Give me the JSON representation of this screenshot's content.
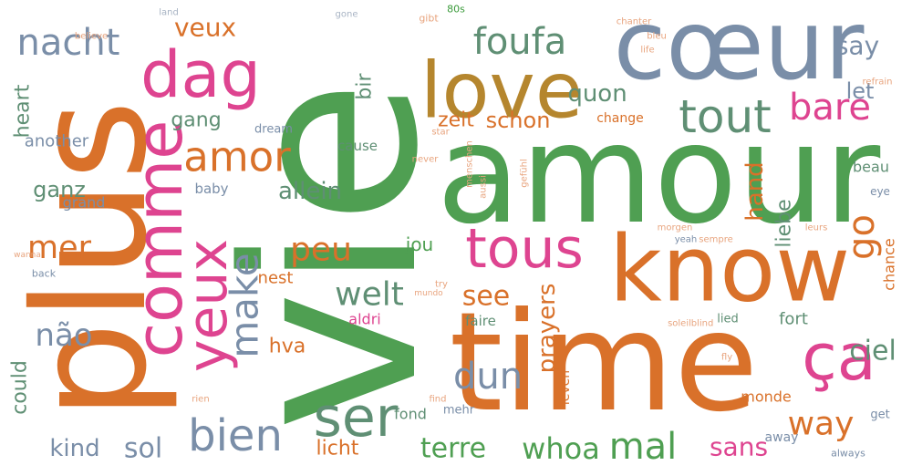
{
  "title": "80s",
  "words": [
    "vie",
    "amour",
    "time",
    "plus",
    "cœur",
    "love",
    "know",
    "comme",
    "yeux",
    "dag",
    "amor",
    "tous",
    "ser",
    "ça",
    "tout",
    "bare",
    "nacht",
    "mer",
    "bien",
    "welt",
    "peu",
    "make",
    "dun",
    "mal",
    "whoa",
    "terre",
    "sol",
    "kind",
    "não",
    "foufa",
    "quon",
    "schon",
    "zeit",
    "gang",
    "veux",
    "say",
    "let",
    "go",
    "way",
    "sans",
    "see",
    "prayers",
    "ciel",
    "hand",
    "liebe",
    "allein",
    "ganz",
    "grand",
    "another",
    "heart",
    "hva",
    "nest",
    "jou",
    "bir",
    "could",
    "licht",
    "fort",
    "beau",
    "chance",
    "faire",
    "fond",
    "monde",
    "away",
    "baby",
    "cause",
    "change",
    "dream",
    "lied",
    "mehr",
    "leven",
    "aldri",
    "get",
    "eye",
    "always",
    "back",
    "land",
    "believe",
    "gone",
    "gibt",
    "chanter",
    "bleu",
    "life",
    "refrain",
    "star",
    "never",
    "yeah",
    "sempre",
    "mundo",
    "try",
    "find",
    "rien",
    "fly",
    "wanna",
    "soleil",
    "blind",
    "menschen",
    "aussi",
    "gefühl",
    "morgen",
    "leurs"
  ]
}
